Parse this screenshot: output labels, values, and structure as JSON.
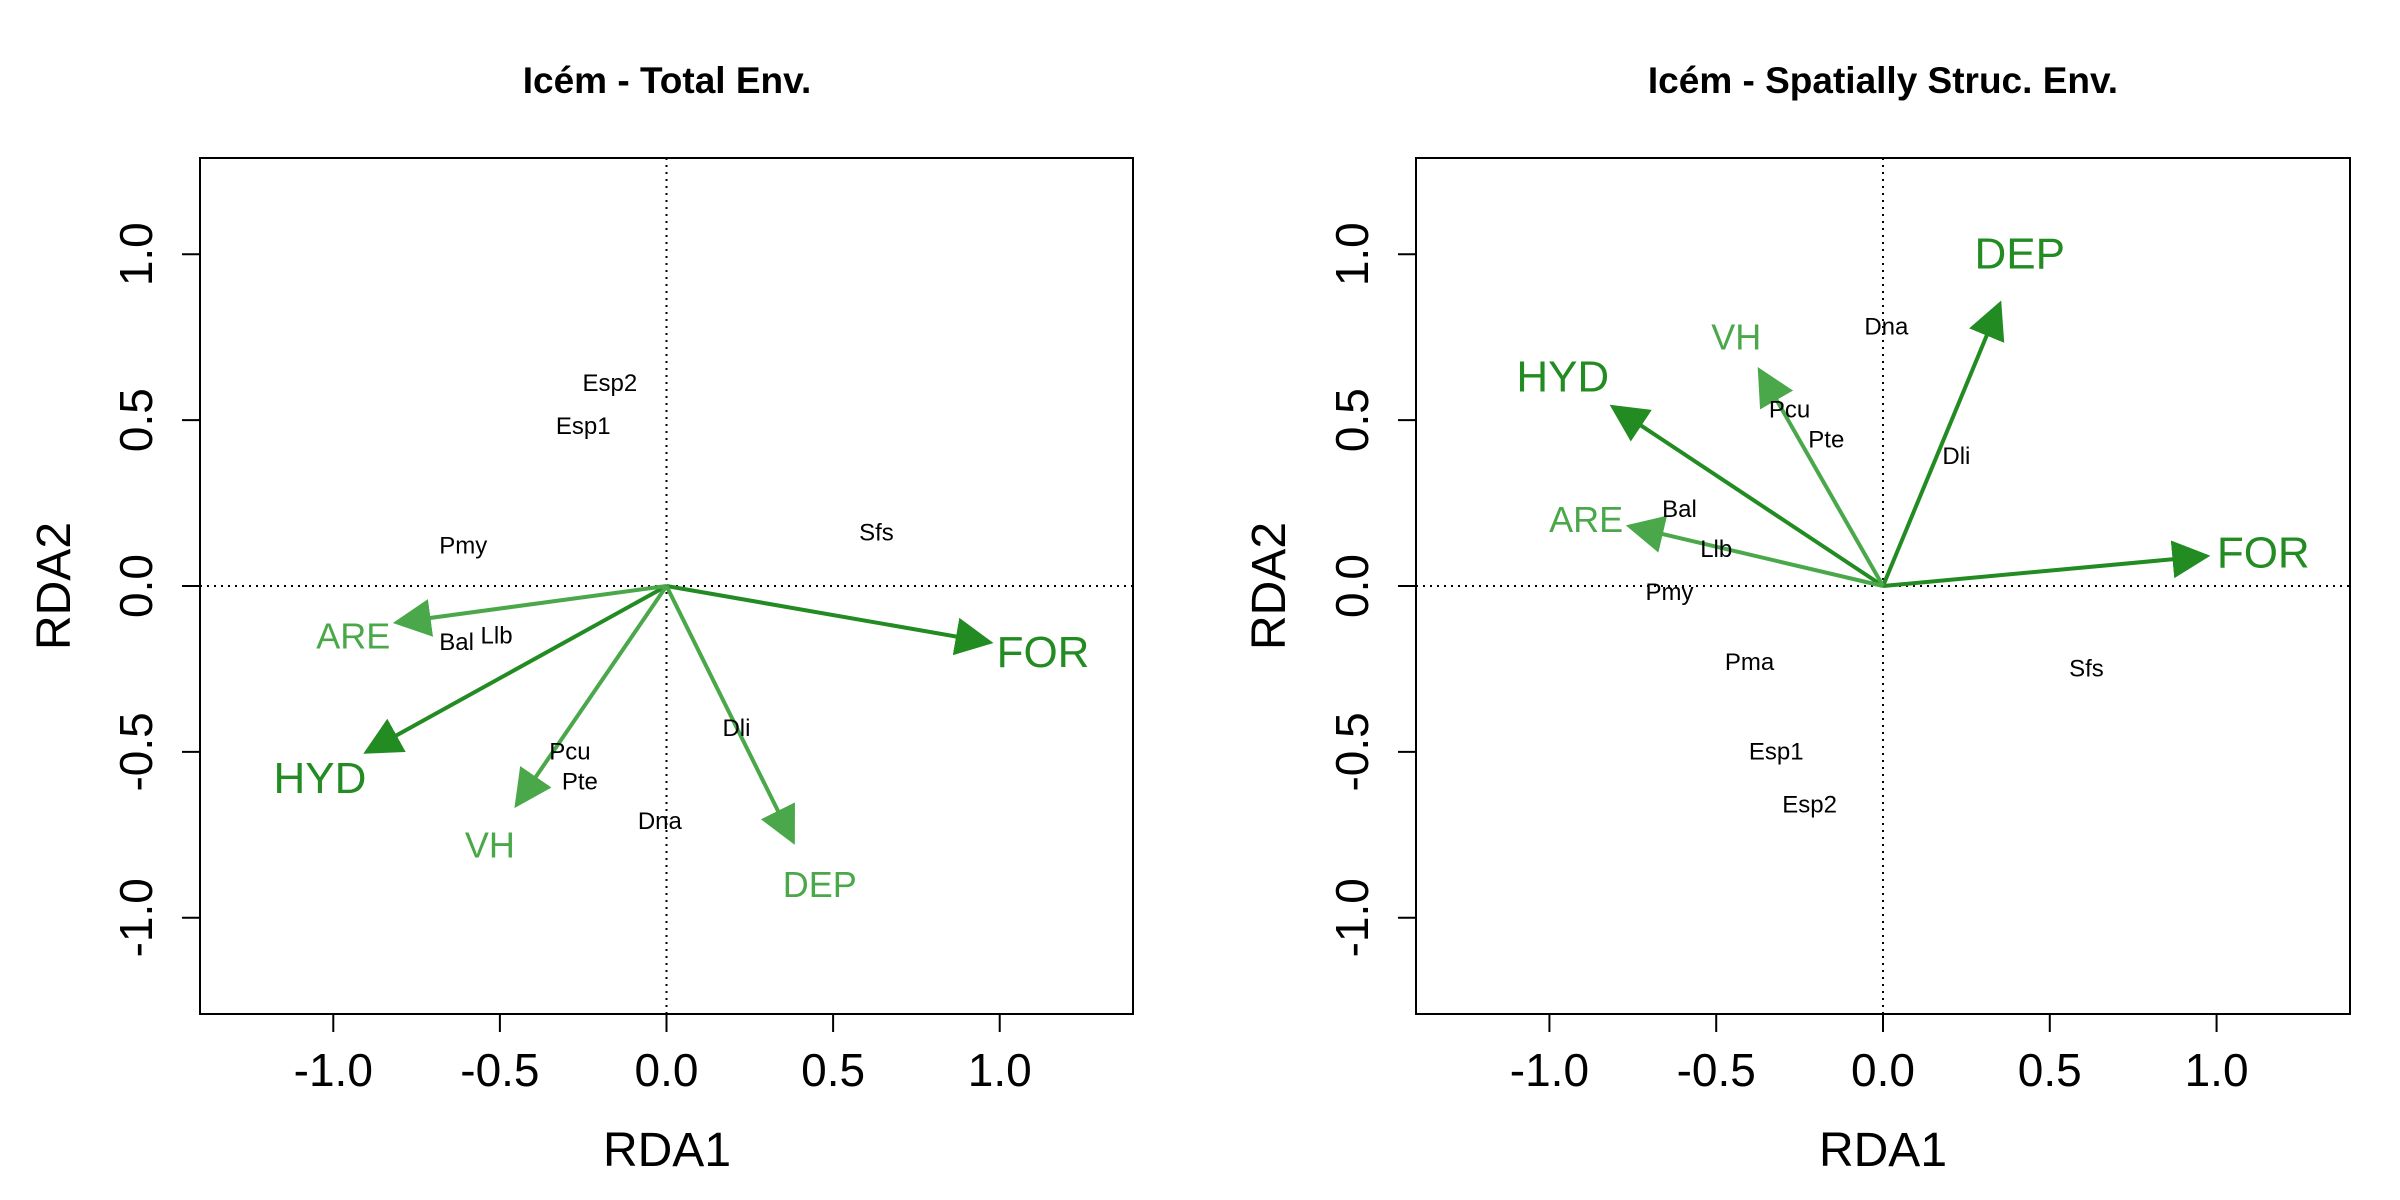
{
  "chart_data": [
    {
      "type": "scatter",
      "title": "Icém - Total Env.",
      "xlabel": "RDA1",
      "ylabel": "RDA2",
      "xlim": [
        -1.4,
        1.4
      ],
      "ylim": [
        -1.29,
        1.29
      ],
      "xticks": [
        -1.0,
        -0.5,
        0.0,
        0.5,
        1.0
      ],
      "yticks": [
        -1.0,
        -0.5,
        0.0,
        0.5,
        1.0
      ],
      "xtick_labels": [
        "-1.0",
        "-0.5",
        "0.0",
        "0.5",
        "1.0"
      ],
      "ytick_labels": [
        "-1.0",
        "-0.5",
        "0.0",
        "0.5",
        "1.0"
      ],
      "reference_lines": "dotted lines at x = 0 and y = 0",
      "variables": [
        {
          "name": "FOR",
          "x": 0.97,
          "y": -0.17,
          "label_x": 1.13,
          "label_y": -0.2,
          "color": "#228B22",
          "size": "large"
        },
        {
          "name": "HYD",
          "x": -0.9,
          "y": -0.5,
          "label_x": -1.04,
          "label_y": -0.58,
          "color": "#228B22",
          "size": "large"
        },
        {
          "name": "DEP",
          "x": 0.38,
          "y": -0.77,
          "label_x": 0.46,
          "label_y": -0.9,
          "color": "#4aa84a",
          "size": "medium"
        },
        {
          "name": "VH",
          "x": -0.45,
          "y": -0.66,
          "label_x": -0.53,
          "label_y": -0.78,
          "color": "#4aa84a",
          "size": "medium"
        },
        {
          "name": "ARE",
          "x": -0.81,
          "y": -0.11,
          "label_x": -0.94,
          "label_y": -0.15,
          "color": "#4aa84a",
          "size": "medium"
        }
      ],
      "species": [
        {
          "name": "Esp2",
          "x": -0.17,
          "y": 0.61
        },
        {
          "name": "Esp1",
          "x": -0.25,
          "y": 0.48
        },
        {
          "name": "Pmy",
          "x": -0.61,
          "y": 0.12
        },
        {
          "name": "Sfs",
          "x": 0.63,
          "y": 0.16
        },
        {
          "name": "Bal",
          "x": -0.63,
          "y": -0.17
        },
        {
          "name": "Llb",
          "x": -0.51,
          "y": -0.15
        },
        {
          "name": "Pcu",
          "x": -0.29,
          "y": -0.5
        },
        {
          "name": "Pte",
          "x": -0.26,
          "y": -0.59
        },
        {
          "name": "Dli",
          "x": 0.21,
          "y": -0.43
        },
        {
          "name": "Dna",
          "x": -0.02,
          "y": -0.71
        }
      ]
    },
    {
      "type": "scatter",
      "title": "Icém - Spatially Struc. Env.",
      "xlabel": "RDA1",
      "ylabel": "RDA2",
      "xlim": [
        -1.4,
        1.4
      ],
      "ylim": [
        -1.29,
        1.29
      ],
      "xticks": [
        -1.0,
        -0.5,
        0.0,
        0.5,
        1.0
      ],
      "yticks": [
        -1.0,
        -0.5,
        0.0,
        0.5,
        1.0
      ],
      "xtick_labels": [
        "-1.0",
        "-0.5",
        "0.0",
        "0.5",
        "1.0"
      ],
      "ytick_labels": [
        "-1.0",
        "-0.5",
        "0.0",
        "0.5",
        "1.0"
      ],
      "reference_lines": "dotted lines at x = 0 and y = 0",
      "variables": [
        {
          "name": "FOR",
          "x": 0.97,
          "y": 0.09,
          "label_x": 1.14,
          "label_y": 0.1,
          "color": "#228B22",
          "size": "large"
        },
        {
          "name": "DEP",
          "x": 0.35,
          "y": 0.85,
          "label_x": 0.41,
          "label_y": 1.0,
          "color": "#228B22",
          "size": "large"
        },
        {
          "name": "HYD",
          "x": -0.81,
          "y": 0.54,
          "label_x": -0.96,
          "label_y": 0.63,
          "color": "#228B22",
          "size": "large"
        },
        {
          "name": "VH",
          "x": -0.37,
          "y": 0.65,
          "label_x": -0.44,
          "label_y": 0.75,
          "color": "#4aa84a",
          "size": "medium"
        },
        {
          "name": "ARE",
          "x": -0.76,
          "y": 0.18,
          "label_x": -0.89,
          "label_y": 0.2,
          "color": "#4aa84a",
          "size": "medium"
        }
      ],
      "species": [
        {
          "name": "Dna",
          "x": 0.01,
          "y": 0.78
        },
        {
          "name": "Pcu",
          "x": -0.28,
          "y": 0.53
        },
        {
          "name": "Pte",
          "x": -0.17,
          "y": 0.44
        },
        {
          "name": "Dli",
          "x": 0.22,
          "y": 0.39
        },
        {
          "name": "Bal",
          "x": -0.61,
          "y": 0.23
        },
        {
          "name": "Llb",
          "x": -0.5,
          "y": 0.11
        },
        {
          "name": "Pmy",
          "x": -0.64,
          "y": -0.02
        },
        {
          "name": "Pma",
          "x": -0.4,
          "y": -0.23
        },
        {
          "name": "Sfs",
          "x": 0.61,
          "y": -0.25
        },
        {
          "name": "Esp1",
          "x": -0.32,
          "y": -0.5
        },
        {
          "name": "Esp2",
          "x": -0.22,
          "y": -0.66
        }
      ]
    }
  ]
}
